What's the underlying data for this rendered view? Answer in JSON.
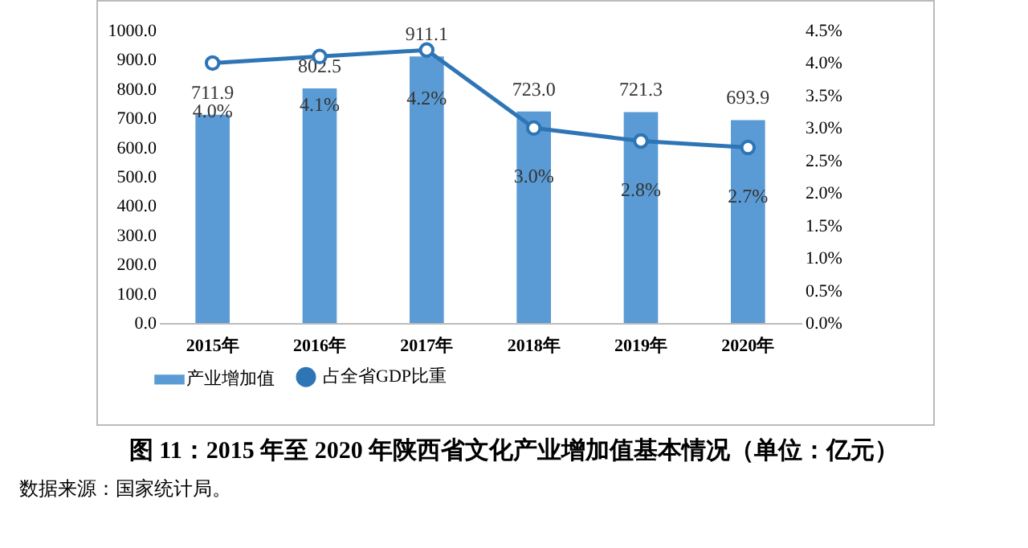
{
  "chart_data": {
    "type": "bar",
    "title": "图 11：2015 年至 2020 年陕西省文化产业增加值基本情况（单位：亿元）",
    "annotations": [
      "数据来源：国家统计局。"
    ],
    "categories": [
      "2015年",
      "2016年",
      "2017年",
      "2018年",
      "2019年",
      "2020年"
    ],
    "series": [
      {
        "name": "产业增加值",
        "color": "#5b9bd5",
        "values": [
          711.9,
          802.5,
          911.1,
          723.0,
          721.3,
          693.9
        ],
        "value_labels": [
          "711.9",
          "802.5",
          "911.1",
          "723.0",
          "721.3",
          "693.9"
        ]
      },
      {
        "name": "占全省GDP比重",
        "type": "line",
        "axis": "y2",
        "color": "#2e75b6",
        "marker": "circle",
        "values": [
          4.0,
          4.1,
          4.2,
          3.0,
          2.8,
          2.7
        ],
        "value_labels": [
          "4.0%",
          "4.1%",
          "4.2%",
          "3.0%",
          "2.8%",
          "2.7%"
        ]
      }
    ],
    "ylim": [
      0,
      1000
    ],
    "yticks": [
      {
        "value": 0,
        "label": "0.0"
      },
      {
        "value": 100,
        "label": "100.0"
      },
      {
        "value": 200,
        "label": "200.0"
      },
      {
        "value": 300,
        "label": "300.0"
      },
      {
        "value": 400,
        "label": "400.0"
      },
      {
        "value": 500,
        "label": "500.0"
      },
      {
        "value": 600,
        "label": "600.0"
      },
      {
        "value": 700,
        "label": "700.0"
      },
      {
        "value": 800,
        "label": "800.0"
      },
      {
        "value": 900,
        "label": "900.0"
      },
      {
        "value": 1000,
        "label": "1000.0"
      }
    ],
    "y2lim": [
      0,
      4.5
    ],
    "y2ticks": [
      {
        "value": 0,
        "label": "0.0%"
      },
      {
        "value": 0.5,
        "label": "0.5%"
      },
      {
        "value": 1,
        "label": "1.0%"
      },
      {
        "value": 1.5,
        "label": "1.5%"
      },
      {
        "value": 2,
        "label": "2.0%"
      },
      {
        "value": 2.5,
        "label": "2.5%"
      },
      {
        "value": 3,
        "label": "3.0%"
      },
      {
        "value": 3.5,
        "label": "3.5%"
      },
      {
        "value": 4,
        "label": "4.0%"
      },
      {
        "value": 4.5,
        "label": "4.5%"
      }
    ],
    "grid": false,
    "legend": "bottom"
  }
}
